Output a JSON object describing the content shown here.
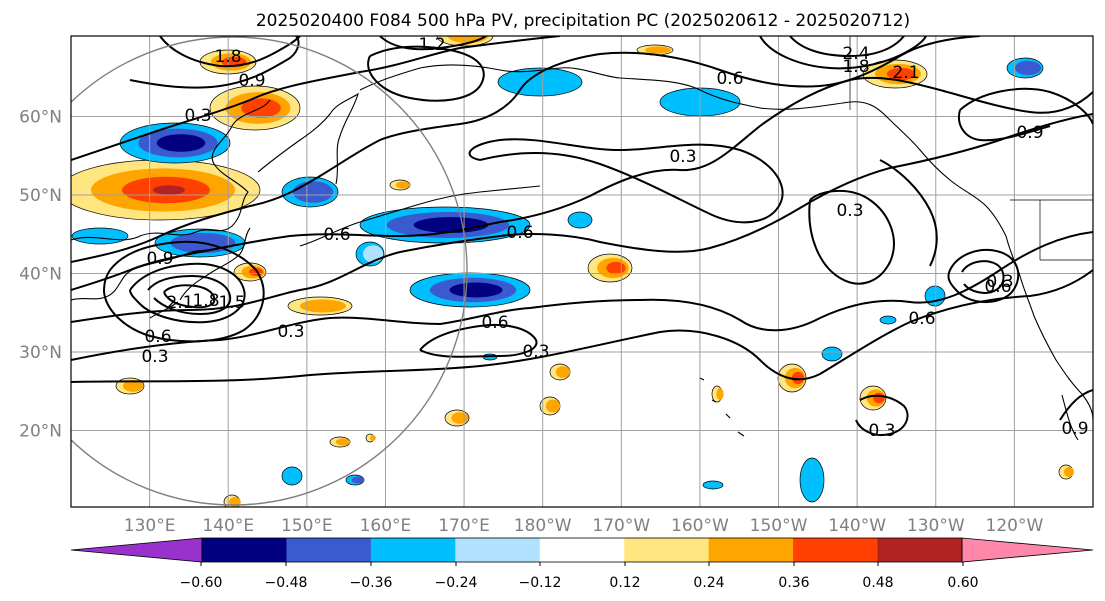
{
  "title": "2025020400 F084 500 hPa PV, precipitation PC (2025020612 - 2025020712)",
  "colors": {
    "fill_levels": [
      "#9932cc",
      "#000080",
      "#3a5bcf",
      "#00bfff",
      "#b0e2ff",
      "#ffffff",
      "#ffe680",
      "#ffa500",
      "#ff4000",
      "#b22222",
      "#ff88aa"
    ],
    "contour": "#000000",
    "grid": "#a0a0a0",
    "coast": "#000000",
    "circle": "#808080"
  },
  "axes": {
    "lon_labels": [
      "130°E",
      "140°E",
      "150°E",
      "160°E",
      "170°E",
      "180°W",
      "170°W",
      "160°W",
      "150°W",
      "140°W",
      "130°W",
      "120°W"
    ],
    "lat_labels": [
      "60°N",
      "50°N",
      "40°N",
      "30°N",
      "20°N"
    ]
  },
  "colorbar": {
    "tick_labels": [
      "−0.60",
      "−0.48",
      "−0.36",
      "−0.24",
      "−0.12",
      "0.12",
      "0.24",
      "0.36",
      "0.48",
      "0.60"
    ],
    "extend": "both"
  },
  "contour_labels": [
    "1.8",
    "1.2",
    "2.4",
    "1.8",
    "2.1",
    "0.9",
    "0.6",
    "0.3",
    "0.3",
    "0.9",
    "0.6",
    "0.3",
    "0.9",
    "2.1",
    "1.8",
    "1.5",
    "0.6",
    "0.6",
    "0.6",
    "0.3",
    "0.3",
    "0.6",
    "0.3",
    "0.9",
    "0.6",
    "0.3",
    "0.3"
  ],
  "chart_data": {
    "type": "map",
    "title": "2025020400 F084 500 hPa PV, precipitation PC (2025020612 - 2025020712)",
    "projection": "cylindrical",
    "lon_range": [
      120,
      250
    ],
    "lat_range": [
      10,
      70
    ],
    "colorbar": {
      "levels": [
        -0.6,
        -0.48,
        -0.36,
        -0.24,
        -0.12,
        0.12,
        0.24,
        0.36,
        0.48,
        0.6
      ],
      "extend": "both"
    },
    "pv_contour_values": [
      0.3,
      0.6,
      0.9,
      1.2,
      1.5,
      1.8,
      2.1,
      2.4
    ],
    "grid": true
  }
}
